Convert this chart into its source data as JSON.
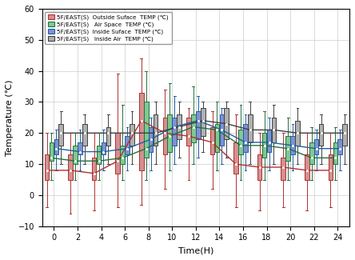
{
  "title": "",
  "xlabel": "Time(H)",
  "ylabel": "Temperature (℃)",
  "xlim": [
    -1,
    25
  ],
  "ylim": [
    -10,
    60
  ],
  "xticks": [
    0,
    2,
    4,
    6,
    8,
    10,
    12,
    14,
    16,
    18,
    20,
    22,
    24
  ],
  "yticks": [
    -10,
    0,
    10,
    20,
    30,
    40,
    50,
    60
  ],
  "hours": [
    0,
    2,
    4,
    6,
    8,
    10,
    12,
    14,
    16,
    18,
    20,
    22,
    24
  ],
  "series": {
    "outside": {
      "label": "5F/EAST(S)  Outside Suface  TEMP (℃)",
      "color": "#b03030",
      "facecolor": "#d49090",
      "whisker_low": [
        -4,
        -6,
        -5,
        -4,
        -3,
        2,
        5,
        2,
        -4,
        -5,
        -4,
        -5,
        -4
      ],
      "q1": [
        5,
        5,
        5,
        7,
        8,
        13,
        16,
        13,
        7,
        5,
        5,
        5,
        5
      ],
      "median": [
        8,
        8,
        7,
        11,
        24,
        20,
        19,
        17,
        10,
        9,
        9,
        8,
        8
      ],
      "q3": [
        13,
        13,
        12,
        20,
        33,
        25,
        25,
        22,
        17,
        13,
        12,
        13,
        13
      ],
      "whisker_high": [
        20,
        20,
        20,
        39,
        44,
        34,
        28,
        27,
        26,
        20,
        20,
        20,
        20
      ]
    },
    "airspace": {
      "label": "5F/EAST(S)   Air Space  TEMP (℃)",
      "color": "#207040",
      "facecolor": "#80c890",
      "whisker_low": [
        5,
        5,
        5,
        5,
        5,
        8,
        10,
        8,
        5,
        5,
        5,
        5,
        5
      ],
      "q1": [
        11,
        10,
        10,
        10,
        12,
        14,
        17,
        14,
        13,
        12,
        11,
        10,
        10
      ],
      "median": [
        12,
        11,
        11,
        12,
        15,
        19,
        22,
        21,
        16,
        16,
        15,
        12,
        12
      ],
      "q3": [
        17,
        16,
        16,
        16,
        30,
        26,
        26,
        23,
        21,
        20,
        19,
        17,
        17
      ],
      "whisker_high": [
        20,
        20,
        20,
        29,
        40,
        36,
        35,
        30,
        29,
        27,
        25,
        22,
        22
      ]
    },
    "inside_surf": {
      "label": "5F/EAST(S)  Inside Suface  TEMP (℃)",
      "color": "#2060a0",
      "facecolor": "#8090d0",
      "whisker_low": [
        8,
        8,
        8,
        8,
        8,
        10,
        12,
        10,
        8,
        8,
        8,
        8,
        8
      ],
      "q1": [
        13,
        13,
        13,
        13,
        14,
        16,
        18,
        16,
        14,
        14,
        13,
        13,
        13
      ],
      "median": [
        15,
        14,
        14,
        15,
        18,
        22,
        24,
        21,
        17,
        17,
        16,
        15,
        15
      ],
      "q3": [
        18,
        17,
        17,
        19,
        22,
        25,
        27,
        26,
        23,
        21,
        19,
        18,
        18
      ],
      "whisker_high": [
        21,
        21,
        21,
        22,
        25,
        32,
        32,
        28,
        26,
        25,
        23,
        21,
        21
      ]
    },
    "inside_air": {
      "label": "5F/EAST(S)   Inside Air  TEMP (℃)",
      "color": "#404040",
      "facecolor": "#b0b0b0",
      "whisker_low": [
        10,
        10,
        10,
        10,
        10,
        12,
        14,
        12,
        10,
        10,
        10,
        10,
        10
      ],
      "q1": [
        16,
        16,
        16,
        16,
        16,
        18,
        19,
        18,
        17,
        17,
        16,
        16,
        16
      ],
      "median": [
        20,
        20,
        20,
        20,
        20,
        22,
        24,
        23,
        21,
        21,
        20,
        20,
        20
      ],
      "q3": [
        23,
        23,
        22,
        23,
        26,
        26,
        28,
        28,
        26,
        25,
        24,
        23,
        23
      ],
      "whisker_high": [
        27,
        26,
        26,
        27,
        30,
        30,
        30,
        30,
        30,
        29,
        28,
        26,
        26
      ]
    }
  },
  "box_width": 0.38,
  "offsets": [
    -0.6,
    -0.2,
    0.2,
    0.6
  ],
  "background_color": "#ffffff",
  "grid_color": "#cccccc"
}
